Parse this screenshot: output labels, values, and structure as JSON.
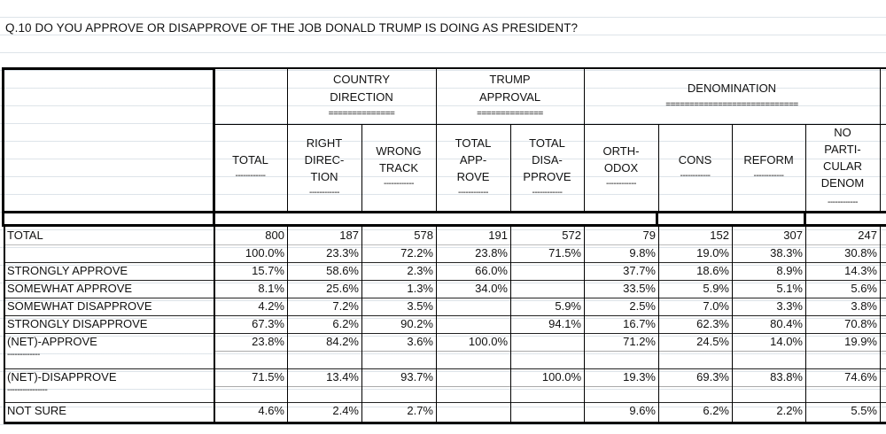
{
  "title": "Q.10 DO YOU APPROVE OR DISAPPROVE OF THE JOB DONALD TRUMP IS DOING AS PRESIDENT?",
  "groups": [
    {
      "label_lines": [
        "COUNTRY",
        "DIRECTION"
      ],
      "sep": "=============="
    },
    {
      "label_lines": [
        "TRUMP",
        "APPROVAL"
      ],
      "sep": "=============="
    },
    {
      "label_lines": [
        "DENOMINATION"
      ],
      "sep": "============================"
    }
  ],
  "columns": [
    {
      "lines": [
        "TOTAL"
      ],
      "sep": "------------"
    },
    {
      "lines": [
        "RIGHT",
        "DIREC-",
        "TION"
      ],
      "sep": "------------"
    },
    {
      "lines": [
        "WRONG",
        "TRACK"
      ],
      "sep": "------------"
    },
    {
      "lines": [
        "TOTAL",
        "APP-",
        "ROVE"
      ],
      "sep": "------------"
    },
    {
      "lines": [
        "TOTAL",
        "DISA-",
        "PPROVE"
      ],
      "sep": "------------"
    },
    {
      "lines": [
        "ORTH-",
        "ODOX"
      ],
      "sep": "------------"
    },
    {
      "lines": [
        "CONS"
      ],
      "sep": "------------"
    },
    {
      "lines": [
        "REFORM"
      ],
      "sep": "------------"
    },
    {
      "lines": [
        "NO",
        "PARTI-",
        "CULAR",
        "DENOM"
      ],
      "sep": "------------"
    }
  ],
  "rows": [
    {
      "label": "TOTAL",
      "values": [
        "800",
        "187",
        "578",
        "191",
        "572",
        "79",
        "152",
        "307",
        "247"
      ]
    },
    {
      "label": "",
      "values": [
        "100.0%",
        "23.3%",
        "72.2%",
        "23.8%",
        "71.5%",
        "9.8%",
        "19.0%",
        "38.3%",
        "30.8%"
      ]
    },
    {
      "label": "STRONGLY APPROVE",
      "values": [
        "15.7%",
        "58.6%",
        "2.3%",
        "66.0%",
        "",
        "37.7%",
        "18.6%",
        "8.9%",
        "14.3%"
      ]
    },
    {
      "label": "SOMEWHAT APPROVE",
      "values": [
        "8.1%",
        "25.6%",
        "1.3%",
        "34.0%",
        "",
        "33.5%",
        "5.9%",
        "5.1%",
        "5.6%"
      ]
    },
    {
      "label": "SOMEWHAT DISAPPROVE",
      "values": [
        "4.2%",
        "7.2%",
        "3.5%",
        "",
        "5.9%",
        "2.5%",
        "7.0%",
        "3.3%",
        "3.8%"
      ]
    },
    {
      "label": "STRONGLY DISAPPROVE",
      "values": [
        "67.3%",
        "6.2%",
        "90.2%",
        "",
        "94.1%",
        "16.7%",
        "62.3%",
        "80.4%",
        "70.8%"
      ]
    },
    {
      "label": "(NET)-APPROVE",
      "sep": "-------------",
      "values": [
        "23.8%",
        "84.2%",
        "3.6%",
        "100.0%",
        "",
        "71.2%",
        "24.5%",
        "14.0%",
        "19.9%"
      ]
    },
    {
      "label": "(NET)-DISAPPROVE",
      "sep": "----------------",
      "values": [
        "71.5%",
        "13.4%",
        "93.7%",
        "",
        "100.0%",
        "19.3%",
        "69.3%",
        "83.8%",
        "74.6%"
      ]
    },
    {
      "label": "NOT SURE",
      "values": [
        "4.6%",
        "2.4%",
        "2.7%",
        "",
        "",
        "9.6%",
        "6.2%",
        "2.2%",
        "5.5%"
      ]
    }
  ]
}
